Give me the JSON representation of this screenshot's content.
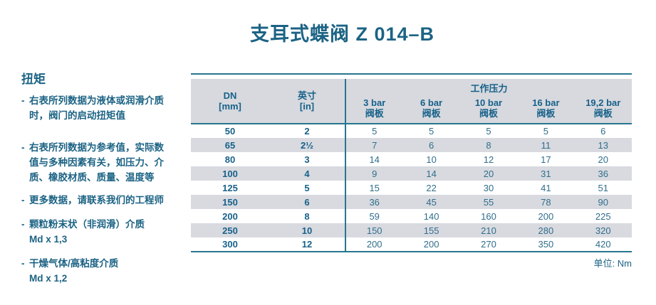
{
  "page": {
    "title": "支耳式蝶阀 Z 014–B",
    "unit_note": "单位:  Nm"
  },
  "colors": {
    "accent_text": "#1c6384",
    "rule": "#27768f",
    "header_bg": "#d7d9de",
    "stripe": "#d8dae0",
    "value_text": "#306e8b"
  },
  "sidebar": {
    "heading": "扭矩",
    "bullet": "-",
    "items": [
      {
        "text": "右表所列数据为液体或润滑介质\n时，阀门的启动扭矩值"
      },
      {
        "text": "右表所列数据为参考值，实际数\n值与多种因素有关，如压力、介\n质、橡胶材质、质量、温度等"
      },
      {
        "text": "更多数据，请联系我们的工程师"
      },
      {
        "text": "颗粒粉末状（非润滑）介质\nMd x 1,3"
      },
      {
        "text": "干燥气体/高粘度介质\nMd x 1,2"
      }
    ]
  },
  "table": {
    "group_header": "工作压力",
    "col_dn": "DN\n[mm]",
    "col_inch": "英寸\n[in]",
    "pressure_cols": [
      "3 bar\n阀板",
      "6 bar\n阀板",
      "10 bar\n阀板",
      "16 bar\n阀板",
      "19,2 bar\n阀板"
    ],
    "rows": [
      [
        "50",
        "2",
        "5",
        "5",
        "5",
        "5",
        "6"
      ],
      [
        "65",
        "2½",
        "7",
        "6",
        "8",
        "11",
        "13"
      ],
      [
        "80",
        "3",
        "14",
        "10",
        "12",
        "17",
        "20"
      ],
      [
        "100",
        "4",
        "9",
        "14",
        "20",
        "31",
        "36"
      ],
      [
        "125",
        "5",
        "15",
        "22",
        "30",
        "41",
        "51"
      ],
      [
        "150",
        "6",
        "36",
        "45",
        "55",
        "78",
        "90"
      ],
      [
        "200",
        "8",
        "59",
        "140",
        "160",
        "200",
        "225"
      ],
      [
        "250",
        "10",
        "150",
        "155",
        "210",
        "280",
        "320"
      ],
      [
        "300",
        "12",
        "200",
        "200",
        "270",
        "350",
        "420"
      ]
    ]
  }
}
